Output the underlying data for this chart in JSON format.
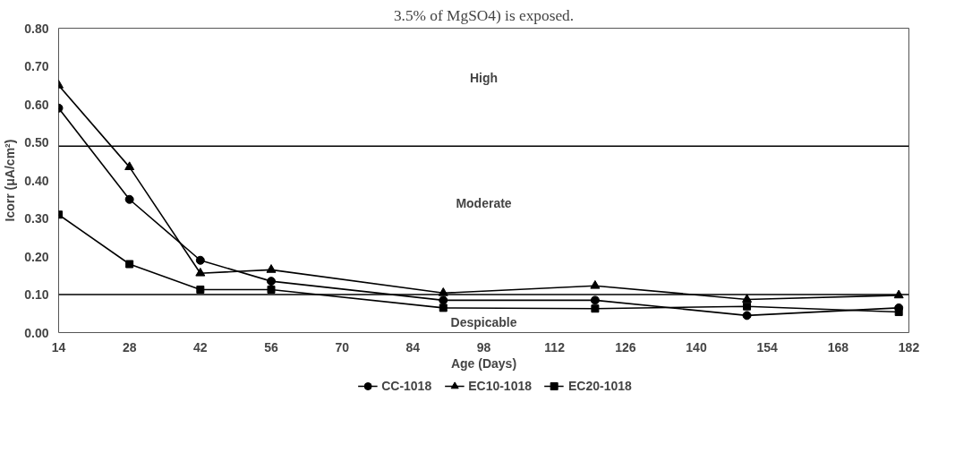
{
  "chart_data": {
    "type": "line",
    "xlabel": "Age (Days)",
    "ylabel": "Icorr (μA/cm²)",
    "x": [
      14,
      28,
      42,
      56,
      90,
      120,
      150,
      180
    ],
    "series": [
      {
        "name": "CC-1018",
        "color": "#000000",
        "marker": "circle",
        "values": [
          0.59,
          0.35,
          0.19,
          0.135,
          0.085,
          0.085,
          0.045,
          0.065
        ]
      },
      {
        "name": "EC10-1018",
        "color": "#000000",
        "marker": "triangle",
        "values": [
          0.65,
          0.435,
          0.156,
          0.165,
          0.104,
          0.123,
          0.087,
          0.098
        ]
      },
      {
        "name": "EC20-1018",
        "color": "#000000",
        "marker": "square",
        "values": [
          0.31,
          0.18,
          0.113,
          0.113,
          0.065,
          0.063,
          0.069,
          0.054
        ]
      }
    ],
    "xlim": [
      14,
      182
    ],
    "xticks": [
      14,
      28,
      42,
      56,
      70,
      84,
      98,
      112,
      126,
      140,
      154,
      168,
      182
    ],
    "ylim": [
      0,
      0.8
    ],
    "yticks": [
      {
        "value": 0,
        "label": "0.00"
      },
      {
        "value": 0.1,
        "label": "0.10"
      },
      {
        "value": 0.2,
        "label": "0.20"
      },
      {
        "value": 0.3,
        "label": "0.30"
      },
      {
        "value": 0.4,
        "label": "0.40"
      },
      {
        "value": 0.5,
        "label": "0.50"
      },
      {
        "value": 0.6,
        "label": "0.60"
      },
      {
        "value": 0.7,
        "label": "0.70"
      },
      {
        "value": 0.8,
        "label": "0.80"
      }
    ],
    "ref_lines": [
      {
        "axis": "y",
        "value": 0.49,
        "color": "#000000"
      },
      {
        "axis": "y",
        "value": 0.1,
        "color": "#000000"
      }
    ],
    "annotations": [
      "3.5% of MgSO4) is exposed.",
      "High",
      "Moderate",
      "Despicable"
    ],
    "grid": false,
    "legend": "bottom",
    "line_style": "solid"
  }
}
